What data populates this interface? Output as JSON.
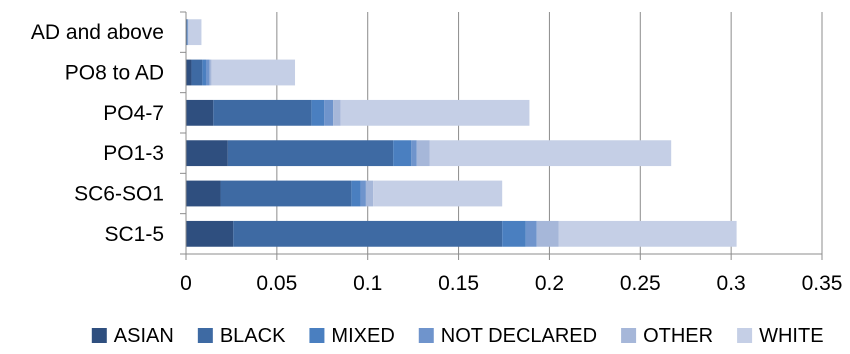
{
  "chart_data": {
    "type": "bar",
    "orientation": "horizontal",
    "stacked": true,
    "title": "",
    "xlabel": "",
    "ylabel": "",
    "xlim": [
      0,
      0.35
    ],
    "x_ticks": [
      0,
      0.05,
      0.1,
      0.15,
      0.2,
      0.25,
      0.3,
      0.35
    ],
    "x_tick_labels": [
      "0",
      "0.05",
      "0.1",
      "0.15",
      "0.2",
      "0.25",
      "0.3",
      "0.35"
    ],
    "grid": "vertical",
    "legend_position": "bottom",
    "categories": [
      "AD and above",
      "PO8 to AD",
      "PO4-7",
      "PO1-3",
      "SC6-SO1",
      "SC1-5"
    ],
    "series": [
      {
        "name": "ASIAN",
        "color": "#2f4f7f",
        "values": [
          0.0002,
          0.003,
          0.015,
          0.023,
          0.019,
          0.026
        ]
      },
      {
        "name": "BLACK",
        "color": "#3e6aa3",
        "values": [
          0.0005,
          0.006,
          0.054,
          0.091,
          0.072,
          0.148
        ]
      },
      {
        "name": "MIXED",
        "color": "#4a7fc0",
        "values": [
          0.0002,
          0.002,
          0.007,
          0.01,
          0.005,
          0.013
        ]
      },
      {
        "name": "NOT DECLARED",
        "color": "#6f94cc",
        "values": [
          0.0003,
          0.002,
          0.005,
          0.003,
          0.003,
          0.006
        ]
      },
      {
        "name": "OTHER",
        "color": "#a6b7d9",
        "values": [
          0.0003,
          0.001,
          0.004,
          0.007,
          0.004,
          0.012
        ]
      },
      {
        "name": "WHITE",
        "color": "#c5cfe6",
        "values": [
          0.007,
          0.046,
          0.104,
          0.133,
          0.071,
          0.098
        ]
      }
    ]
  }
}
